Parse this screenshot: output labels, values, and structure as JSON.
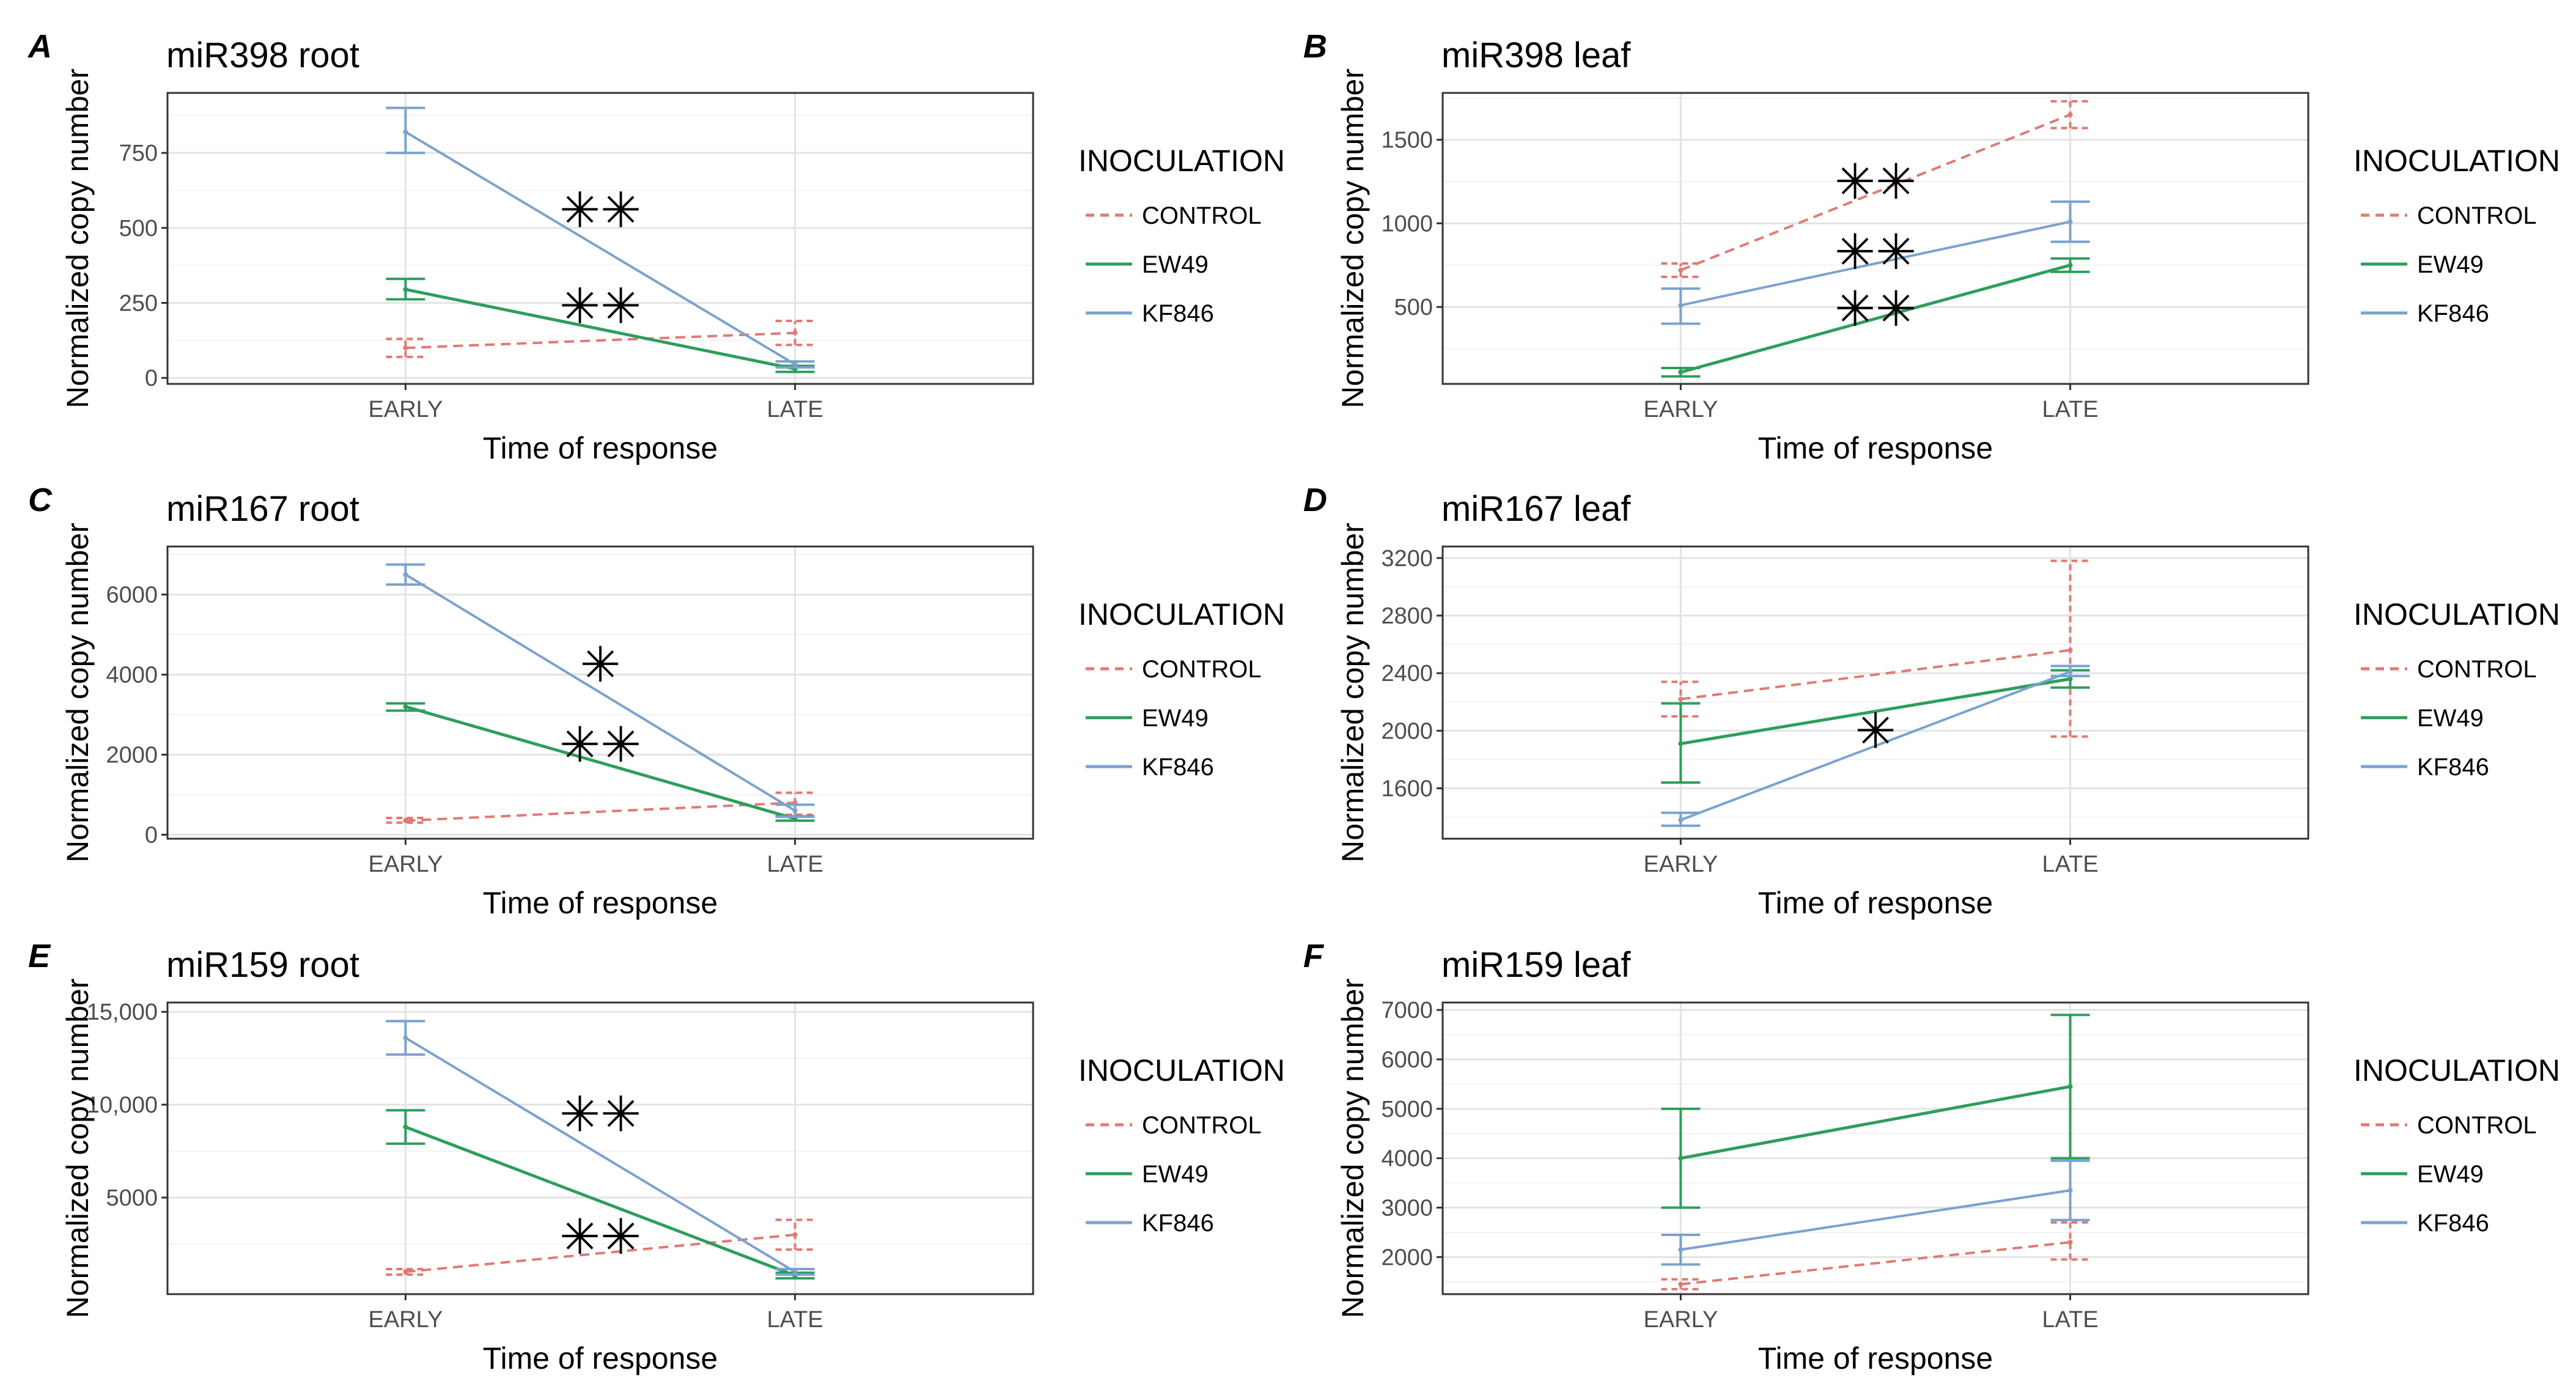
{
  "colors": {
    "CONTROL": "#E07A74",
    "EW49": "#2E9E5B",
    "KF846": "#7BA2CF"
  },
  "chart_data": [
    {
      "id": "A",
      "panel_label": "A",
      "type": "line",
      "title": "miR398 root",
      "xlabel": "Time of response",
      "ylabel": "Normalized copy number",
      "categories": [
        "EARLY",
        "LATE"
      ],
      "ylim": [
        -20,
        950
      ],
      "yticks": [
        0,
        250,
        500,
        750
      ],
      "ytick_labels": [
        "0",
        "250",
        "500",
        "750"
      ],
      "legend_title": "INOCULATION",
      "series": [
        {
          "name": "CONTROL",
          "values": [
            100,
            150
          ],
          "errors": [
            [
              70,
              130
            ],
            [
              110,
              190
            ]
          ]
        },
        {
          "name": "EW49",
          "values": [
            295,
            30
          ],
          "errors": [
            [
              262,
              330
            ],
            [
              20,
              40
            ]
          ]
        },
        {
          "name": "KF846",
          "values": [
            820,
            45
          ],
          "errors": [
            [
              750,
              900
            ],
            [
              35,
              55
            ]
          ]
        }
      ],
      "annotations": [
        {
          "text": "✳✳",
          "x": 0.5,
          "y": 560
        },
        {
          "text": "✳✳",
          "x": 0.5,
          "y": 240
        }
      ]
    },
    {
      "id": "B",
      "panel_label": "B",
      "type": "line",
      "title": "miR398 leaf",
      "xlabel": "Time of response",
      "ylabel": "Normalized copy number",
      "categories": [
        "EARLY",
        "LATE"
      ],
      "ylim": [
        40,
        1780
      ],
      "yticks": [
        500,
        1000,
        1500
      ],
      "ytick_labels": [
        "500",
        "1000",
        "1500"
      ],
      "legend_title": "INOCULATION",
      "series": [
        {
          "name": "CONTROL",
          "values": [
            720,
            1650
          ],
          "errors": [
            [
              680,
              760
            ],
            [
              1570,
              1730
            ]
          ]
        },
        {
          "name": "EW49",
          "values": [
            110,
            750
          ],
          "errors": [
            [
              85,
              135
            ],
            [
              710,
              790
            ]
          ]
        },
        {
          "name": "KF846",
          "values": [
            510,
            1010
          ],
          "errors": [
            [
              400,
              610
            ],
            [
              890,
              1130
            ]
          ]
        }
      ],
      "annotations": [
        {
          "text": "✳✳",
          "x": 0.5,
          "y": 1250
        },
        {
          "text": "✳✳",
          "x": 0.5,
          "y": 830
        },
        {
          "text": "✳✳",
          "x": 0.5,
          "y": 490
        }
      ]
    },
    {
      "id": "C",
      "panel_label": "C",
      "type": "line",
      "title": "miR167 root",
      "xlabel": "Time of response",
      "ylabel": "Normalized copy number",
      "categories": [
        "EARLY",
        "LATE"
      ],
      "ylim": [
        -100,
        7200
      ],
      "yticks": [
        0,
        2000,
        4000,
        6000
      ],
      "ytick_labels": [
        "0",
        "2000",
        "4000",
        "6000"
      ],
      "legend_title": "INOCULATION",
      "series": [
        {
          "name": "CONTROL",
          "values": [
            350,
            800
          ],
          "errors": [
            [
              300,
              420
            ],
            [
              500,
              1050
            ]
          ]
        },
        {
          "name": "EW49",
          "values": [
            3200,
            400
          ],
          "errors": [
            [
              3100,
              3280
            ],
            [
              350,
              460
            ]
          ]
        },
        {
          "name": "KF846",
          "values": [
            6500,
            600
          ],
          "errors": [
            [
              6250,
              6750
            ],
            [
              450,
              750
            ]
          ]
        }
      ],
      "annotations": [
        {
          "text": "✳",
          "x": 0.5,
          "y": 4250
        },
        {
          "text": "✳✳",
          "x": 0.5,
          "y": 2250
        }
      ]
    },
    {
      "id": "D",
      "panel_label": "D",
      "type": "line",
      "title": "miR167 leaf",
      "xlabel": "Time of response",
      "ylabel": "Normalized copy number",
      "categories": [
        "EARLY",
        "LATE"
      ],
      "ylim": [
        1250,
        3280
      ],
      "yticks": [
        1600,
        2000,
        2400,
        2800,
        3200
      ],
      "ytick_labels": [
        "1600",
        "2000",
        "2400",
        "2800",
        "3200"
      ],
      "legend_title": "INOCULATION",
      "series": [
        {
          "name": "CONTROL",
          "values": [
            2220,
            2560
          ],
          "errors": [
            [
              2100,
              2340
            ],
            [
              1960,
              3180
            ]
          ]
        },
        {
          "name": "EW49",
          "values": [
            1910,
            2360
          ],
          "errors": [
            [
              1640,
              2190
            ],
            [
              2300,
              2420
            ]
          ]
        },
        {
          "name": "KF846",
          "values": [
            1380,
            2410
          ],
          "errors": [
            [
              1340,
              1430
            ],
            [
              2380,
              2450
            ]
          ]
        }
      ],
      "annotations": [
        {
          "text": "✳",
          "x": 0.5,
          "y": 2000
        }
      ]
    },
    {
      "id": "E",
      "panel_label": "E",
      "type": "line",
      "title": "miR159 root",
      "xlabel": "Time of response",
      "ylabel": "Normalized copy number",
      "categories": [
        "EARLY",
        "LATE"
      ],
      "ylim": [
        -200,
        15500
      ],
      "yticks": [
        5000,
        10000,
        15000
      ],
      "ytick_labels": [
        "5000",
        "10,000",
        "15,000"
      ],
      "legend_title": "INOCULATION",
      "series": [
        {
          "name": "CONTROL",
          "values": [
            1000,
            3000
          ],
          "errors": [
            [
              850,
              1150
            ],
            [
              2200,
              3800
            ]
          ]
        },
        {
          "name": "EW49",
          "values": [
            8800,
            800
          ],
          "errors": [
            [
              7900,
              9700
            ],
            [
              650,
              950
            ]
          ]
        },
        {
          "name": "KF846",
          "values": [
            13600,
            1000
          ],
          "errors": [
            [
              12700,
              14500
            ],
            [
              850,
              1150
            ]
          ]
        }
      ],
      "annotations": [
        {
          "text": "✳✳",
          "x": 0.5,
          "y": 9500
        },
        {
          "text": "✳✳",
          "x": 0.5,
          "y": 2900
        }
      ]
    },
    {
      "id": "F",
      "panel_label": "F",
      "type": "line",
      "title": "miR159 leaf",
      "xlabel": "Time of response",
      "ylabel": "Normalized copy number",
      "categories": [
        "EARLY",
        "LATE"
      ],
      "ylim": [
        1250,
        7150
      ],
      "yticks": [
        2000,
        3000,
        4000,
        5000,
        6000,
        7000
      ],
      "ytick_labels": [
        "2000",
        "3000",
        "4000",
        "5000",
        "6000",
        "7000"
      ],
      "legend_title": "INOCULATION",
      "series": [
        {
          "name": "CONTROL",
          "values": [
            1450,
            2300
          ],
          "errors": [
            [
              1350,
              1550
            ],
            [
              1950,
              2700
            ]
          ]
        },
        {
          "name": "EW49",
          "values": [
            4000,
            5450
          ],
          "errors": [
            [
              3000,
              5000
            ],
            [
              4000,
              6900
            ]
          ]
        },
        {
          "name": "KF846",
          "values": [
            2150,
            3350
          ],
          "errors": [
            [
              1850,
              2450
            ],
            [
              2750,
              3950
            ]
          ]
        }
      ],
      "annotations": []
    }
  ]
}
